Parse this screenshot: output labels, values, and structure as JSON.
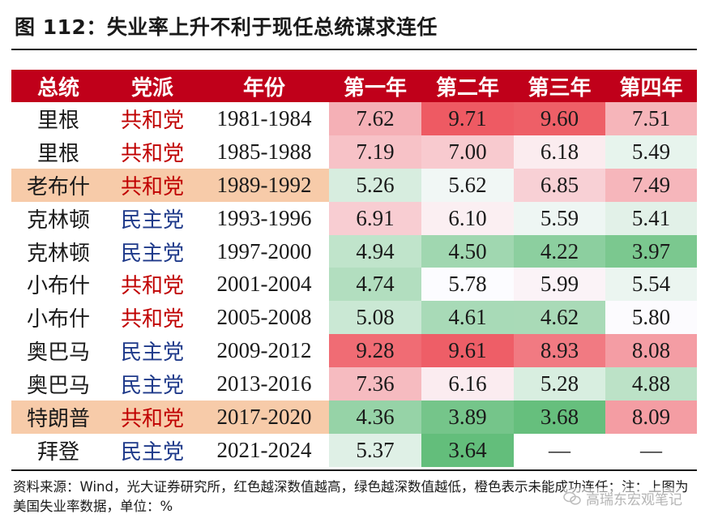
{
  "title": "图 112：失业率上升不利于现任总统谋求连任",
  "table": {
    "headers": [
      "总统",
      "党派",
      "年份",
      "第一年",
      "第二年",
      "第三年",
      "第四年"
    ],
    "rows": [
      {
        "president": "里根",
        "party": "共和党",
        "years": "1981-1984",
        "values": [
          "7.62",
          "9.71",
          "9.60",
          "7.51"
        ],
        "highlight": false
      },
      {
        "president": "里根",
        "party": "共和党",
        "years": "1985-1988",
        "values": [
          "7.19",
          "7.00",
          "6.18",
          "5.49"
        ],
        "highlight": false
      },
      {
        "president": "老布什",
        "party": "共和党",
        "years": "1989-1992",
        "values": [
          "5.26",
          "5.62",
          "6.85",
          "7.49"
        ],
        "highlight": true
      },
      {
        "president": "克林顿",
        "party": "民主党",
        "years": "1993-1996",
        "values": [
          "6.91",
          "6.10",
          "5.59",
          "5.41"
        ],
        "highlight": false
      },
      {
        "president": "克林顿",
        "party": "民主党",
        "years": "1997-2000",
        "values": [
          "4.94",
          "4.50",
          "4.22",
          "3.97"
        ],
        "highlight": false
      },
      {
        "president": "小布什",
        "party": "共和党",
        "years": "2001-2004",
        "values": [
          "4.74",
          "5.78",
          "5.99",
          "5.54"
        ],
        "highlight": false
      },
      {
        "president": "小布什",
        "party": "共和党",
        "years": "2005-2008",
        "values": [
          "5.08",
          "4.61",
          "4.62",
          "5.80"
        ],
        "highlight": false
      },
      {
        "president": "奥巴马",
        "party": "民主党",
        "years": "2009-2012",
        "values": [
          "9.28",
          "9.61",
          "8.93",
          "8.08"
        ],
        "highlight": false
      },
      {
        "president": "奥巴马",
        "party": "民主党",
        "years": "2013-2016",
        "values": [
          "7.36",
          "6.16",
          "5.28",
          "4.88"
        ],
        "highlight": false
      },
      {
        "president": "特朗普",
        "party": "共和党",
        "years": "2017-2020",
        "values": [
          "4.36",
          "3.89",
          "3.68",
          "8.09"
        ],
        "highlight": true
      },
      {
        "president": "拜登",
        "party": "民主党",
        "years": "2021-2024",
        "values": [
          "5.37",
          "3.64",
          "—",
          "—"
        ],
        "highlight": false
      }
    ]
  },
  "footnote": "资料来源：Wind，光大证券研究所，红色越深数值越高，绿色越深数值越低，橙色表示未能成功连任；注：上图为美国失业率数据，单位：%",
  "watermark": "高瑞东宏观笔记",
  "colors": {
    "header_bg": "#c0001a",
    "republican_text": "#c00000",
    "democrat_text": "#1f3a8a",
    "not_reelected_bg": "#f7cba9",
    "heat_high": "#ee5a63",
    "heat_mid": "#fcfcff",
    "heat_low": "#63be7b"
  }
}
